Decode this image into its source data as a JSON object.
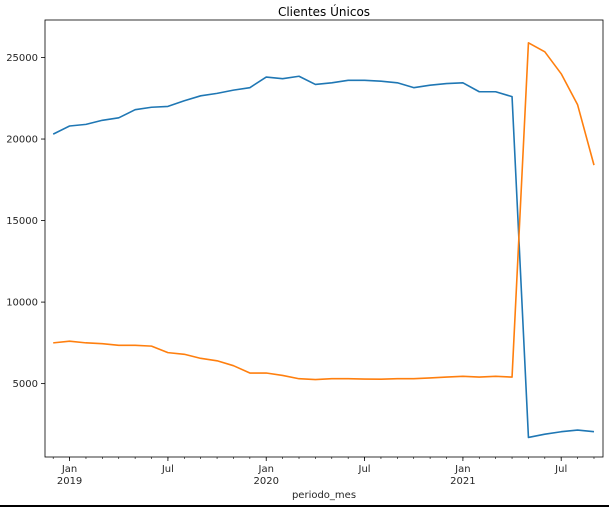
{
  "chart_data": {
    "type": "line",
    "title": "Clientes Únicos",
    "xlabel": "periodo_mes",
    "ylabel": "",
    "grid": false,
    "legend": "none",
    "x": [
      "2018-12",
      "2019-01",
      "2019-02",
      "2019-03",
      "2019-04",
      "2019-05",
      "2019-06",
      "2019-07",
      "2019-08",
      "2019-09",
      "2019-10",
      "2019-11",
      "2019-12",
      "2020-01",
      "2020-02",
      "2020-03",
      "2020-04",
      "2020-05",
      "2020-06",
      "2020-07",
      "2020-08",
      "2020-09",
      "2020-10",
      "2020-11",
      "2020-12",
      "2021-01",
      "2021-02",
      "2021-03",
      "2021-04",
      "2021-05",
      "2021-06",
      "2021-07",
      "2021-08",
      "2021-09"
    ],
    "xlim": [
      "2018-12",
      "2021-09"
    ],
    "ylim": [
      500,
      27300
    ],
    "yticks": [
      5000,
      10000,
      15000,
      20000,
      25000
    ],
    "xticks": [
      {
        "x": "2019-01",
        "label": "Jan",
        "sublabel": "2019"
      },
      {
        "x": "2019-07",
        "label": "Jul",
        "sublabel": ""
      },
      {
        "x": "2020-01",
        "label": "Jan",
        "sublabel": "2020"
      },
      {
        "x": "2020-07",
        "label": "Jul",
        "sublabel": ""
      },
      {
        "x": "2021-01",
        "label": "Jan",
        "sublabel": "2021"
      },
      {
        "x": "2021-07",
        "label": "Jul",
        "sublabel": ""
      }
    ],
    "series": [
      {
        "color": "#1f77b4",
        "values": [
          20300,
          20800,
          20900,
          21150,
          21300,
          21800,
          21950,
          22000,
          22350,
          22650,
          22800,
          23000,
          23150,
          23800,
          23700,
          23850,
          23350,
          23450,
          23600,
          23600,
          23550,
          23450,
          23150,
          23300,
          23400,
          23450,
          22900,
          22900,
          22600,
          1700,
          1900,
          2050,
          2150,
          2050
        ]
      },
      {
        "color": "#ff7f0e",
        "values": [
          7500,
          7600,
          7500,
          7450,
          7350,
          7350,
          7300,
          6900,
          6800,
          6550,
          6400,
          6100,
          5650,
          5650,
          5500,
          5300,
          5250,
          5300,
          5300,
          5280,
          5270,
          5300,
          5300,
          5350,
          5400,
          5450,
          5400,
          5450,
          5400,
          25900,
          25350,
          24000,
          22100,
          18400
        ]
      }
    ]
  }
}
